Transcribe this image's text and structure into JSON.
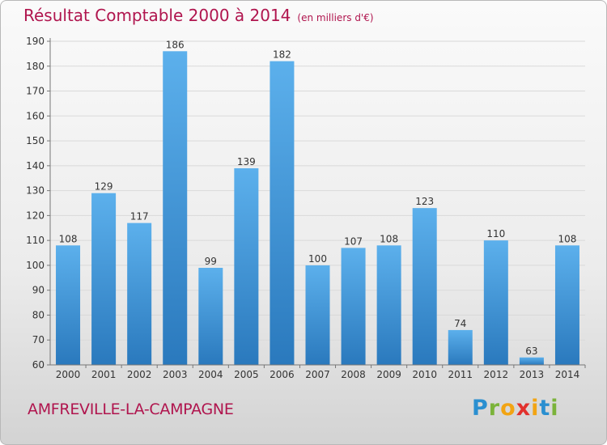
{
  "header": {
    "title": "Résultat Comptable 2000 à 2014",
    "subtitle": "(en milliers d'€)"
  },
  "footer": {
    "commune": "AMFREVILLE-LA-CAMPAGNE",
    "logo_letters": [
      "P",
      "r",
      "o",
      "x",
      "i",
      "t",
      "i"
    ],
    "logo_colors": [
      "#2a8fd0",
      "#7bb33a",
      "#f2a413",
      "#e2312d",
      "#f2a413",
      "#2a8fd0",
      "#7bb33a"
    ]
  },
  "chart_data": {
    "type": "bar",
    "categories": [
      "2000",
      "2001",
      "2002",
      "2003",
      "2004",
      "2005",
      "2006",
      "2007",
      "2008",
      "2009",
      "2010",
      "2011",
      "2012",
      "2013",
      "2014"
    ],
    "values": [
      108,
      129,
      117,
      186,
      99,
      139,
      182,
      100,
      107,
      108,
      123,
      74,
      110,
      63,
      108
    ],
    "data_labels": [
      "108",
      "129",
      "117",
      "186",
      "99",
      "139",
      "182",
      "100",
      "107",
      "108",
      "123",
      "74",
      "110",
      "63",
      "108"
    ],
    "y_ticks": [
      60,
      70,
      80,
      90,
      100,
      110,
      120,
      130,
      140,
      150,
      160,
      170,
      180,
      190
    ],
    "ylim": [
      60,
      190
    ],
    "bar_color": "#3d95dc",
    "grid": true
  }
}
